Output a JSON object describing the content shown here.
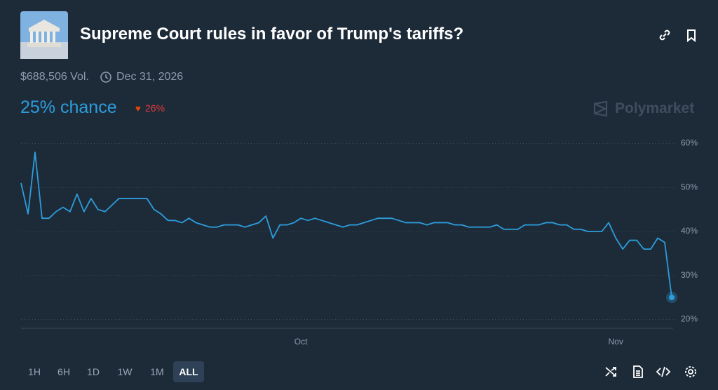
{
  "header": {
    "title": "Supreme Court rules in favor of Trump's tariffs?",
    "volume": "$688,506 Vol.",
    "end_date": "Dec 31, 2026",
    "chance": "25% chance",
    "change": "26%",
    "brand": "Polymarket"
  },
  "ranges": [
    "1H",
    "6H",
    "1D",
    "1W",
    "1M",
    "ALL"
  ],
  "selected_range": 5,
  "chart_data": {
    "type": "line",
    "categories": [
      null,
      null,
      null,
      null,
      null,
      null,
      null,
      null,
      null,
      null,
      null,
      null,
      null,
      null,
      null,
      null,
      null,
      null,
      null,
      null,
      null,
      null,
      null,
      null,
      null,
      null,
      null,
      null,
      null,
      null,
      null,
      null,
      null,
      null,
      null,
      null,
      null,
      null,
      null,
      null,
      "Oct",
      null,
      null,
      null,
      null,
      null,
      null,
      null,
      null,
      null,
      null,
      null,
      null,
      null,
      null,
      null,
      null,
      null,
      null,
      null,
      null,
      null,
      null,
      null,
      null,
      null,
      null,
      null,
      null,
      null,
      null,
      null,
      null,
      null,
      null,
      null,
      null,
      null,
      null,
      null,
      null,
      null,
      null,
      null,
      null,
      "Nov",
      null,
      null,
      null,
      null,
      null,
      null,
      null,
      null
    ],
    "series": [
      {
        "color": "#2d9cdb",
        "values": [
          51,
          44,
          58,
          43,
          43,
          44.5,
          45.5,
          44.5,
          48.5,
          44.5,
          47.5,
          45,
          44.5,
          46,
          47.5,
          47.5,
          47.5,
          47.5,
          47.5,
          45,
          44,
          42.5,
          42.5,
          42,
          43,
          42,
          41.5,
          41,
          41,
          41.5,
          41.5,
          41.5,
          41,
          41.5,
          42,
          43.5,
          38.5,
          41.5,
          41.5,
          42,
          43,
          42.5,
          43,
          42.5,
          42,
          41.5,
          41,
          41.5,
          41.5,
          42,
          42.5,
          43,
          43,
          43,
          42.5,
          42,
          42,
          42,
          41.5,
          42,
          42,
          42,
          41.5,
          41.5,
          41,
          41,
          41,
          41,
          41.5,
          40.5,
          40.5,
          40.5,
          41.5,
          41.5,
          41.5,
          42,
          42,
          41.5,
          41.5,
          40.5,
          40.5,
          40,
          40,
          40,
          42,
          38.5,
          36,
          38,
          38,
          36,
          36,
          38.5,
          37.5,
          25
        ]
      }
    ],
    "ylim": [
      18,
      62
    ],
    "yticks": [
      {
        "value": 20,
        "label": "20%"
      },
      {
        "value": 30,
        "label": "30%"
      },
      {
        "value": 40,
        "label": "40%"
      },
      {
        "value": 50,
        "label": "50%"
      },
      {
        "value": 60,
        "label": "60%"
      }
    ],
    "grid": true
  }
}
